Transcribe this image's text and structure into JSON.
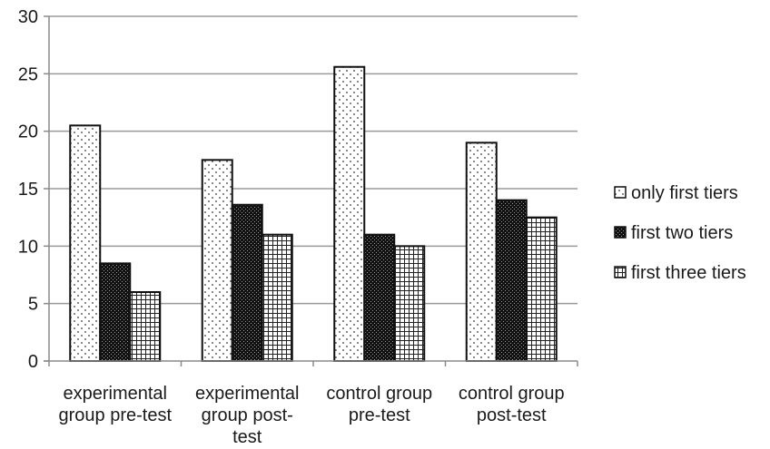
{
  "chart_data": {
    "type": "bar",
    "categories": [
      [
        "experimental",
        "group pre-test"
      ],
      [
        "experimental",
        "group post-",
        "test"
      ],
      [
        "control group",
        "pre-test"
      ],
      [
        "control group",
        "post-test"
      ]
    ],
    "series": [
      {
        "name": "only first tiers",
        "values": [
          20.5,
          17.5,
          25.6,
          19
        ],
        "pattern": "dots"
      },
      {
        "name": "first two tiers",
        "values": [
          8.5,
          13.6,
          11,
          14
        ],
        "pattern": "dark"
      },
      {
        "name": "first three tiers",
        "values": [
          6,
          11,
          10,
          12.5
        ],
        "pattern": "grid"
      }
    ],
    "ylim": [
      0,
      30
    ],
    "yticks": [
      0,
      5,
      10,
      15,
      20,
      25,
      30
    ],
    "grid": true,
    "legend": "right",
    "title": "",
    "xlabel": "",
    "ylabel": ""
  }
}
